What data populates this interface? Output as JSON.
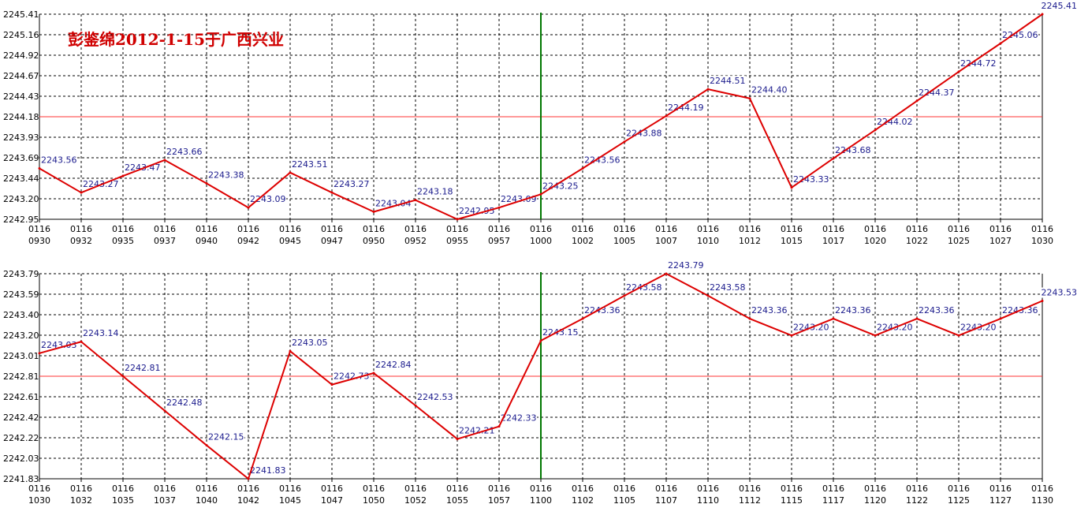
{
  "title": "彭鉴绵2012-1-15于广西兴业",
  "colors": {
    "line": "#dd0000",
    "reference": "#ff3333",
    "divider": "#007700",
    "grid": "#000000",
    "label": "#1a1a8c"
  },
  "chart_data": [
    {
      "type": "line",
      "y_ticks": [
        "2245.41",
        "2245.16",
        "2244.92",
        "2244.67",
        "2244.43",
        "2244.18",
        "2243.93",
        "2243.69",
        "2243.44",
        "2243.20",
        "2242.95"
      ],
      "ylim": [
        2242.95,
        2245.41
      ],
      "reference_y": 2244.18,
      "divider_index": 12,
      "x_top": [
        "0116",
        "0116",
        "0116",
        "0116",
        "0116",
        "0116",
        "0116",
        "0116",
        "0116",
        "0116",
        "0116",
        "0116",
        "0116",
        "0116",
        "0116",
        "0116",
        "0116",
        "0116",
        "0116",
        "0116",
        "0116",
        "0116",
        "0116",
        "0116",
        "0116"
      ],
      "x_bottom": [
        "0930",
        "0932",
        "0935",
        "0937",
        "0940",
        "0942",
        "0945",
        "0947",
        "0950",
        "0952",
        "0955",
        "0957",
        "1000",
        "1002",
        "1005",
        "1007",
        "1010",
        "1012",
        "1015",
        "1017",
        "1020",
        "1022",
        "1025",
        "1027",
        "1030"
      ],
      "values": [
        2243.56,
        2243.27,
        2243.47,
        2243.66,
        2243.38,
        2243.09,
        2243.51,
        2243.27,
        2243.04,
        2243.18,
        2242.95,
        2243.09,
        2243.25,
        2243.56,
        2243.88,
        2244.19,
        2244.51,
        2244.4,
        2243.33,
        2243.68,
        2244.02,
        2244.37,
        2244.72,
        2245.06,
        2245.41
      ],
      "value_labels": [
        "2243.56",
        "2243.27",
        "2243.47",
        "2243.66",
        "2243.38",
        "2243.09",
        "2243.51",
        "2243.27",
        "2243.04",
        "2243.18",
        "2242.95",
        "2243.09",
        "2243.25",
        "2243.56",
        "2243.88",
        "2244.19",
        "2244.51",
        "2244.40",
        "2243.33",
        "2243.68",
        "2244.02",
        "2244.37",
        "2244.72",
        "2245.06",
        "2245.41"
      ]
    },
    {
      "type": "line",
      "y_ticks": [
        "2243.79",
        "2243.59",
        "2243.40",
        "2243.20",
        "2243.01",
        "2242.81",
        "2242.61",
        "2242.42",
        "2242.22",
        "2242.03",
        "2241.83"
      ],
      "ylim": [
        2241.83,
        2243.79
      ],
      "reference_y": 2242.81,
      "divider_index": 12,
      "x_top": [
        "0116",
        "0116",
        "0116",
        "0116",
        "0116",
        "0116",
        "0116",
        "0116",
        "0116",
        "0116",
        "0116",
        "0116",
        "0116",
        "0116",
        "0116",
        "0116",
        "0116",
        "0116",
        "0116",
        "0116",
        "0116",
        "0116",
        "0116",
        "0116",
        "0116"
      ],
      "x_bottom": [
        "1030",
        "1032",
        "1035",
        "1037",
        "1040",
        "1042",
        "1045",
        "1047",
        "1050",
        "1052",
        "1055",
        "1057",
        "1100",
        "1102",
        "1105",
        "1107",
        "1110",
        "1112",
        "1115",
        "1117",
        "1120",
        "1122",
        "1125",
        "1127",
        "1130"
      ],
      "values": [
        2243.03,
        2243.14,
        2242.81,
        2242.48,
        2242.15,
        2241.83,
        2243.05,
        2242.73,
        2242.84,
        2242.53,
        2242.21,
        2242.33,
        2243.15,
        2243.36,
        2243.58,
        2243.79,
        2243.58,
        2243.36,
        2243.2,
        2243.36,
        2243.2,
        2243.36,
        2243.2,
        2243.36,
        2243.53
      ],
      "value_labels": [
        "2243.03",
        "2243.14",
        "2242.81",
        "2242.48",
        "2242.15",
        "2241.83",
        "2243.05",
        "2242.73",
        "2242.84",
        "2242.53",
        "2242.21",
        "2242.33",
        "2243.15",
        "2243.36",
        "2243.58",
        "2243.79",
        "2243.58",
        "2243.36",
        "2243.20",
        "2243.36",
        "2243.20",
        "2243.36",
        "2243.20",
        "2243.36",
        "2243.53"
      ]
    }
  ]
}
